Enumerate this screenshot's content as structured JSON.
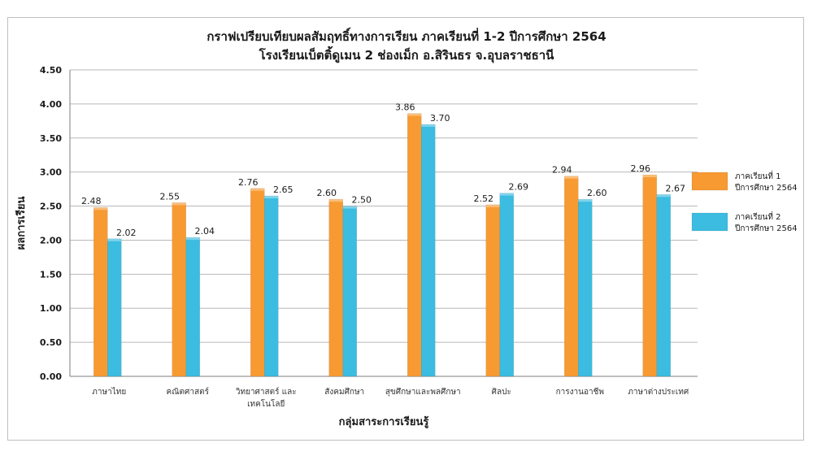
{
  "chart_data": {
    "type": "bar",
    "title_lines": [
      "กราฟเปรียบเทียบผลสัมฤทธิ์ทางการเรียน ภาคเรียนที่  1-2  ปีการศึกษา 2564",
      "โรงเรียนเบ็ตติ้ดูเมน 2 ช่องเม็ก   อ.สิรินธร   จ.อุบลราชธานี"
    ],
    "xlabel": "กลุ่มสาระการเรียนรู้",
    "ylabel": "ผลการเรียน",
    "ylim": [
      0,
      4.5
    ],
    "yticks": [
      "0.00",
      "0.50",
      "1.00",
      "1.50",
      "2.00",
      "2.50",
      "3.00",
      "3.50",
      "4.00",
      "4.50"
    ],
    "grid": true,
    "legend_position": "right",
    "categories": [
      [
        "ภาษาไทย"
      ],
      [
        "คณิตศาสตร์"
      ],
      [
        "วิทยาศาสตร์ และ",
        "เทคโนโลยี"
      ],
      [
        "สังคมศึกษา"
      ],
      [
        "สุขศึกษาและพลศึกษา"
      ],
      [
        "ศิลปะ"
      ],
      [
        "การงานอาชีพ"
      ],
      [
        "ภาษาต่างประเทศ"
      ]
    ],
    "series": [
      {
        "name_lines": [
          "ภาคเรียนที่ 1",
          "ปีการศึกษา 2564"
        ],
        "color": "#F79A32",
        "values": [
          2.48,
          2.55,
          2.76,
          2.6,
          3.86,
          2.52,
          2.94,
          2.96
        ],
        "labels": [
          "2.48",
          "2.55",
          "2.76",
          "2.60",
          "3.86",
          "2.52",
          "2.94",
          "2.96"
        ]
      },
      {
        "name_lines": [
          "ภาคเรียนที่ 2",
          "ปีการศึกษา 2564"
        ],
        "color": "#3BBCE0",
        "values": [
          2.02,
          2.04,
          2.65,
          2.5,
          3.7,
          2.69,
          2.6,
          2.67
        ],
        "labels": [
          "2.02",
          "2.04",
          "2.65",
          "2.50",
          "3.70",
          "2.69",
          "2.60",
          "2.67"
        ]
      }
    ]
  }
}
